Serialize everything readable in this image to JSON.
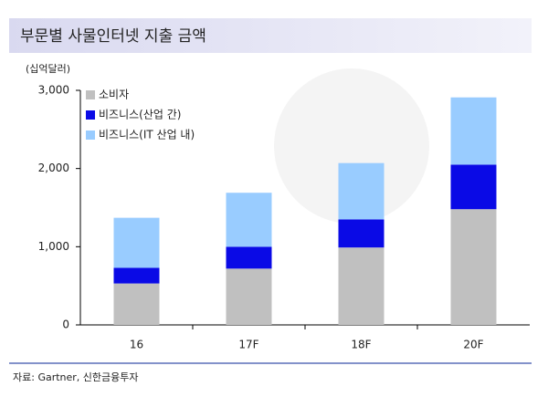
{
  "chart_data": {
    "type": "stacked_bar",
    "title": "부문별 사물인터넷 지출 금액",
    "unit": "(십억달러)",
    "source": "자료: Gartner, 신한금융투자",
    "categories": [
      "16",
      "17F",
      "18F",
      "20F"
    ],
    "series": [
      {
        "name": "소비자",
        "color": "#c0c0c0",
        "values": [
          530,
          720,
          990,
          1480
        ]
      },
      {
        "name": "비즈니스(산업 간)",
        "color": "#0a0ae6",
        "values": [
          200,
          280,
          360,
          570
        ]
      },
      {
        "name": "비즈니스(IT 산업 내)",
        "color": "#99ccff",
        "values": [
          640,
          690,
          720,
          860
        ]
      }
    ],
    "ylim": [
      0,
      3000
    ],
    "yticks": [
      0,
      {
        "value": 1000,
        "label": "1,000"
      },
      {
        "value": 2000,
        "label": "2,000"
      },
      {
        "value": 3000,
        "label": "3,000"
      }
    ]
  }
}
